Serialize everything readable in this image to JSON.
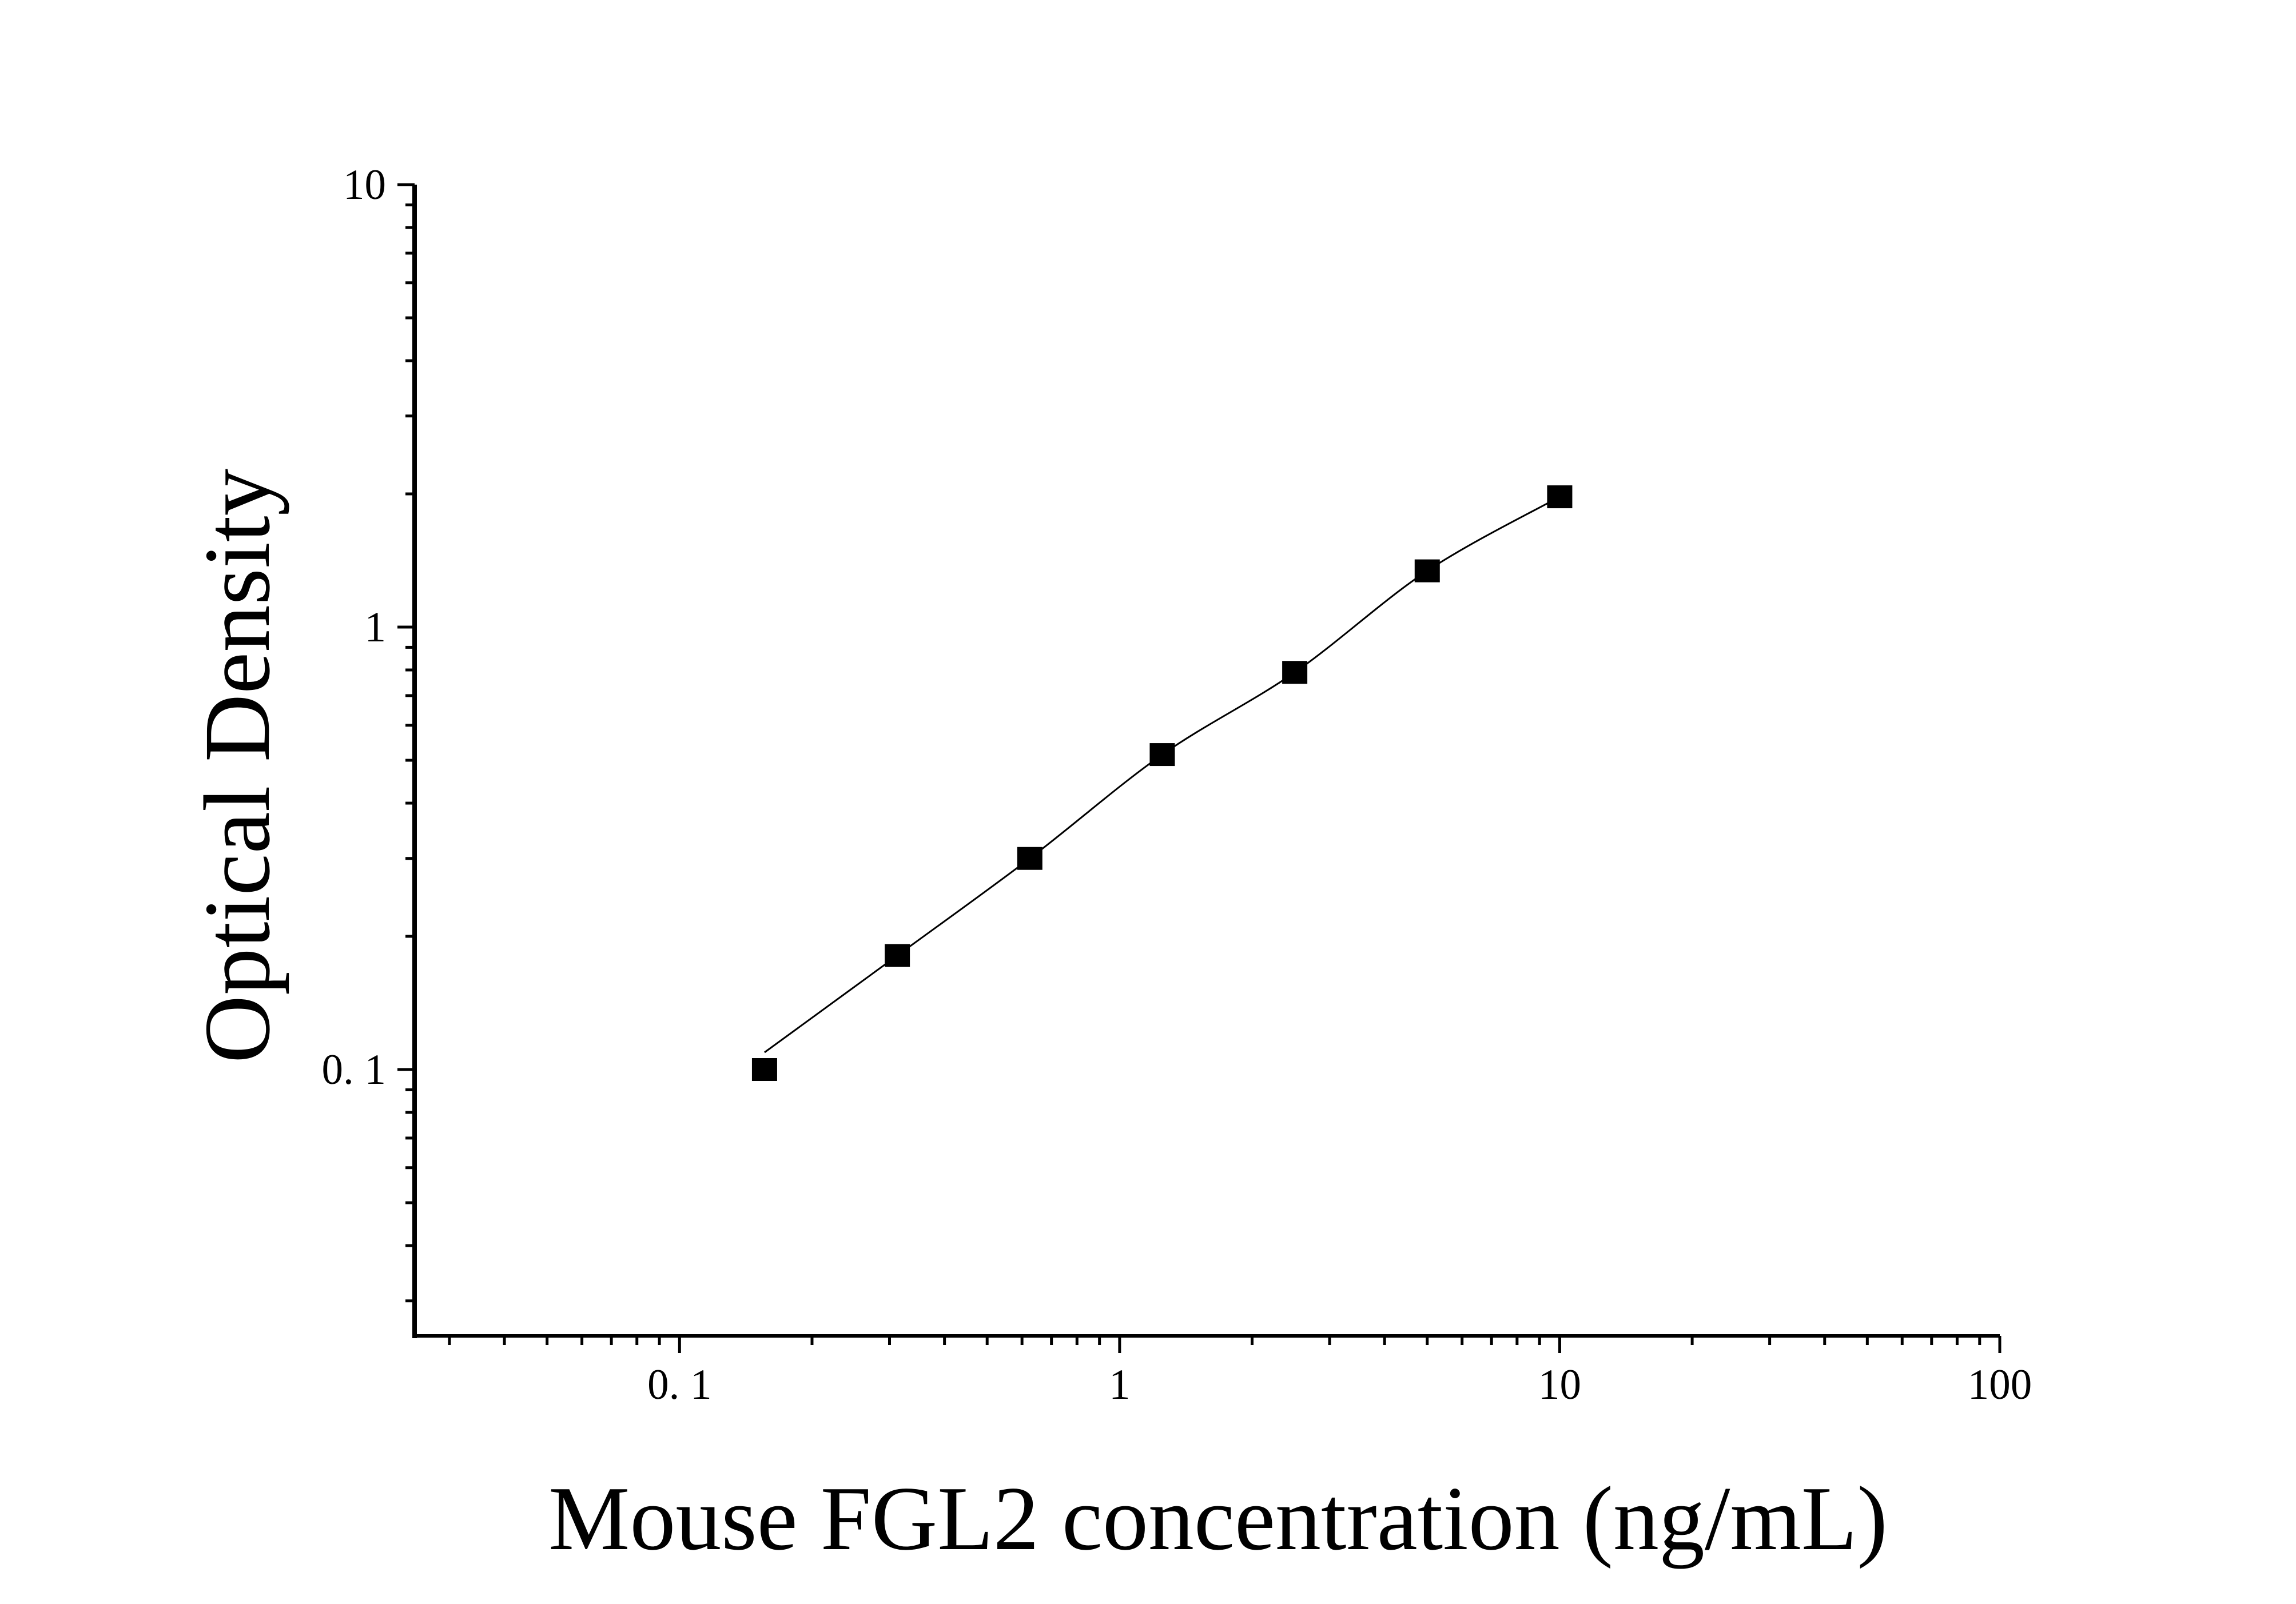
{
  "chart_data": {
    "type": "scatter",
    "title": "",
    "xlabel": "Mouse FGL2 concentration (ng/mL)",
    "ylabel": "Optical Density",
    "x_scale": "log",
    "y_scale": "log",
    "xlim": [
      0.025,
      100
    ],
    "ylim": [
      0.025,
      10
    ],
    "x_ticks": [
      {
        "value": 0.1,
        "label": "0. 1"
      },
      {
        "value": 1,
        "label": "1"
      },
      {
        "value": 10,
        "label": "10"
      },
      {
        "value": 100,
        "label": "100"
      }
    ],
    "y_ticks": [
      {
        "value": 0.1,
        "label": "0. 1"
      },
      {
        "value": 1,
        "label": "1"
      },
      {
        "value": 10,
        "label": "10"
      }
    ],
    "grid": false,
    "marker": "square",
    "fit_line": true,
    "color": "#000000",
    "series": [
      {
        "x": [
          0.156,
          0.3125,
          0.625,
          1.25,
          2.5,
          5,
          10
        ],
        "y": [
          0.1,
          0.181,
          0.3,
          0.515,
          0.79,
          1.34,
          1.97
        ]
      }
    ]
  }
}
